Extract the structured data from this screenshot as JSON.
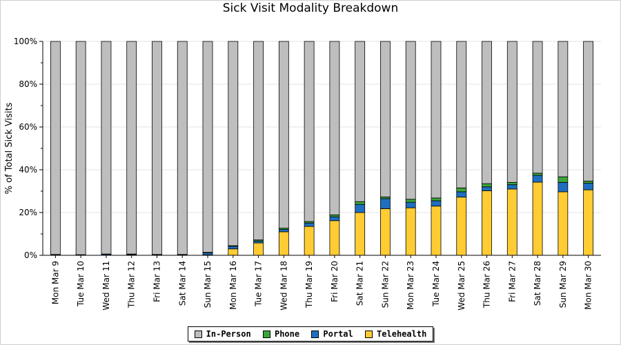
{
  "chart_data": {
    "type": "bar",
    "stacked": true,
    "title": "Sick Visit Modality Breakdown",
    "ylabel": "% of Total Sick Visits",
    "xlabel": "",
    "ylim": [
      0,
      100
    ],
    "yticks": [
      "0%",
      "20%",
      "40%",
      "60%",
      "80%",
      "100%"
    ],
    "categories": [
      "Mon Mar 9",
      "Tue Mar 10",
      "Wed Mar 11",
      "Thu Mar 12",
      "Fri Mar 13",
      "Sat Mar 14",
      "Sun Mar 15",
      "Mon Mar 16",
      "Tue Mar 17",
      "Wed Mar 18",
      "Thu Mar 19",
      "Fri Mar 20",
      "Sat Mar 21",
      "Sun Mar 22",
      "Mon Mar 23",
      "Tue Mar 24",
      "Wed Mar 25",
      "Thu Mar 26",
      "Fri Mar 27",
      "Sat Mar 28",
      "Sun Mar 29",
      "Mon Mar 30"
    ],
    "series": [
      {
        "name": "Telehealth",
        "color": "#ffcc33",
        "values": [
          0.1,
          0.1,
          0.1,
          0.3,
          0.2,
          0.1,
          0.2,
          3.0,
          5.8,
          11.0,
          13.5,
          16.2,
          20.0,
          21.8,
          22.2,
          23.0,
          27.2,
          30.2,
          31.0,
          34.2,
          29.7,
          30.6
        ]
      },
      {
        "name": "Portal",
        "color": "#1f6fc0",
        "values": [
          0.2,
          0.1,
          0.4,
          0.2,
          0.1,
          0.2,
          1.0,
          1.2,
          0.9,
          1.1,
          1.6,
          1.8,
          3.8,
          4.7,
          2.6,
          2.5,
          2.5,
          1.8,
          2.0,
          3.2,
          4.4,
          3.1
        ]
      },
      {
        "name": "Phone",
        "color": "#3aa63a",
        "values": [
          0.1,
          0.1,
          0.1,
          0.1,
          0.1,
          0.1,
          0.2,
          0.3,
          0.5,
          0.6,
          0.7,
          0.9,
          1.3,
          0.8,
          1.4,
          1.3,
          1.8,
          1.5,
          1.1,
          1.0,
          2.6,
          1.0
        ]
      },
      {
        "name": "In-Person",
        "color": "#bebebe",
        "values": [
          99.6,
          99.7,
          99.4,
          99.4,
          99.6,
          99.6,
          98.6,
          95.5,
          92.8,
          87.3,
          84.2,
          81.1,
          74.9,
          72.7,
          73.8,
          73.2,
          68.5,
          66.5,
          65.9,
          61.6,
          63.3,
          65.3
        ]
      }
    ],
    "legend_order": [
      "In-Person",
      "Phone",
      "Portal",
      "Telehealth"
    ],
    "legend_position": "bottom-center",
    "grid": true
  }
}
